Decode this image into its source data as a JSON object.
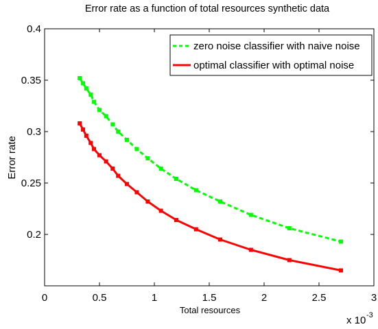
{
  "chart_data": {
    "type": "line",
    "title": "Error rate as a function of total resources synthetic data",
    "xlabel": "Total resources",
    "ylabel": "Error rate",
    "x_multiplier": "x 10",
    "x_multiplier_exp": "-3",
    "xlim": [
      0,
      3
    ],
    "ylim": [
      0.15,
      0.4
    ],
    "xticks": [
      0,
      0.5,
      1,
      1.5,
      2,
      2.5,
      3
    ],
    "xtick_labels": [
      "0",
      "0.5",
      "1",
      "1.5",
      "2",
      "2.5",
      "3"
    ],
    "yticks": [
      0.2,
      0.25,
      0.3,
      0.35,
      0.4
    ],
    "ytick_labels": [
      "0.2",
      "0.25",
      "0.3",
      "0.35",
      "0.4"
    ],
    "grid": false,
    "legend_position": "top-right",
    "series": [
      {
        "name": "zero noise classifier with naive noise",
        "color": "#00ff00",
        "dash": "dashed",
        "x": [
          0.32,
          0.35,
          0.38,
          0.42,
          0.45,
          0.5,
          0.56,
          0.62,
          0.67,
          0.75,
          0.84,
          0.94,
          1.06,
          1.2,
          1.38,
          1.6,
          1.88,
          2.23,
          2.7
        ],
        "y": [
          0.352,
          0.347,
          0.342,
          0.336,
          0.329,
          0.321,
          0.315,
          0.307,
          0.3,
          0.292,
          0.283,
          0.274,
          0.264,
          0.254,
          0.243,
          0.232,
          0.219,
          0.206,
          0.193
        ]
      },
      {
        "name": "optimal classifier with optimal noise",
        "color": "#ff0000",
        "dash": "solid",
        "x": [
          0.32,
          0.35,
          0.38,
          0.42,
          0.45,
          0.5,
          0.56,
          0.62,
          0.67,
          0.75,
          0.84,
          0.94,
          1.06,
          1.2,
          1.38,
          1.6,
          1.88,
          2.23,
          2.7
        ],
        "y": [
          0.308,
          0.302,
          0.296,
          0.289,
          0.283,
          0.277,
          0.271,
          0.264,
          0.257,
          0.249,
          0.241,
          0.232,
          0.223,
          0.214,
          0.205,
          0.195,
          0.185,
          0.175,
          0.165
        ]
      }
    ]
  }
}
